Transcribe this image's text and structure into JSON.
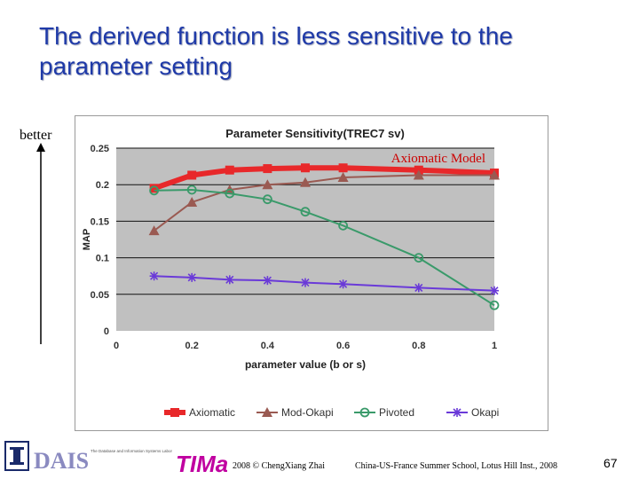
{
  "slide": {
    "title": "The derived function is less sensitive to the parameter setting",
    "better_label": "better",
    "footer_copyright": "2008 © ChengXiang Zhai",
    "footer_event": "China-US-France Summer School, Lotus Hill Inst., 2008",
    "page_number": "67",
    "logo_left_text": "DAIS",
    "logo_left_subtext": "The Database and Information Systems Laboratory",
    "logo_mid_text": "TIMan"
  },
  "colors": {
    "title": "#1f3aa8",
    "plot_bg": "#c0c0c0",
    "axiomatic": "#e8282a",
    "mod_okapi": "#9a5a52",
    "pivoted": "#3a9a6a",
    "okapi": "#6a3ad8",
    "annotation": "#cc0000"
  },
  "chart_data": {
    "type": "line",
    "title": "Parameter Sensitivity(TREC7 sv)",
    "xlabel": "parameter value (b or s)",
    "ylabel": "MAP",
    "xlim": [
      0,
      1
    ],
    "ylim": [
      0,
      0.25
    ],
    "xticks": [
      "0",
      "0.2",
      "0.4",
      "0.6",
      "0.8",
      "1"
    ],
    "yticks": [
      "0",
      "0.05",
      "0.1",
      "0.15",
      "0.2",
      "0.25"
    ],
    "grid": true,
    "legend_position": "bottom",
    "annotation": "Axiomatic Model",
    "series": [
      {
        "name": "Axiomatic",
        "marker": "square",
        "x": [
          0.1,
          0.2,
          0.3,
          0.4,
          0.5,
          0.6,
          0.8,
          1.0
        ],
        "y": [
          0.195,
          0.213,
          0.22,
          0.222,
          0.223,
          0.223,
          0.22,
          0.216
        ]
      },
      {
        "name": "Mod-Okapi",
        "marker": "triangle",
        "x": [
          0.1,
          0.2,
          0.3,
          0.4,
          0.5,
          0.6,
          0.8,
          1.0
        ],
        "y": [
          0.137,
          0.176,
          0.193,
          0.2,
          0.203,
          0.21,
          0.213,
          0.213
        ]
      },
      {
        "name": "Pivoted",
        "marker": "circle",
        "x": [
          0.1,
          0.2,
          0.3,
          0.4,
          0.5,
          0.6,
          0.8,
          1.0
        ],
        "y": [
          0.192,
          0.193,
          0.188,
          0.18,
          0.163,
          0.144,
          0.1,
          0.035
        ]
      },
      {
        "name": "Okapi",
        "marker": "star",
        "x": [
          0.1,
          0.2,
          0.3,
          0.4,
          0.5,
          0.6,
          0.8,
          1.0
        ],
        "y": [
          0.075,
          0.073,
          0.07,
          0.069,
          0.066,
          0.064,
          0.059,
          0.055
        ]
      }
    ]
  }
}
